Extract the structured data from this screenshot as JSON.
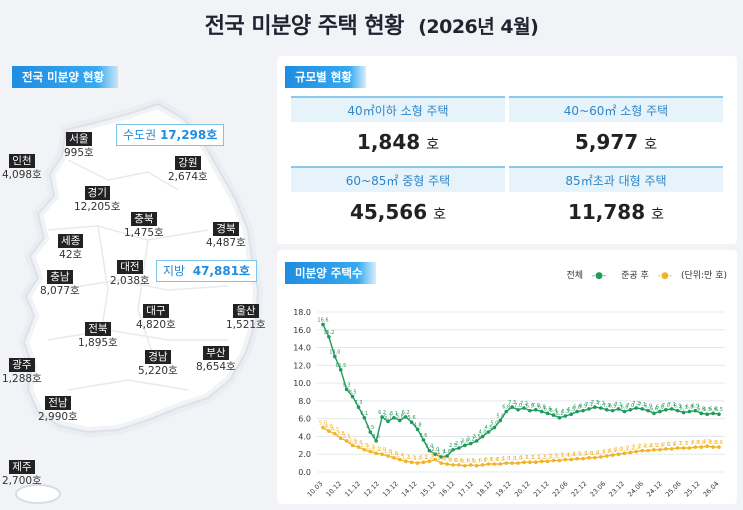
{
  "title": "전국 미분양 주택 현황",
  "title_sub": "(2026년 4월)",
  "map": {
    "badge": "전국 미분양 현황",
    "capital_label": "수도권",
    "capital_value": "17,298호",
    "local_label": "지방",
    "local_value": "47,881호",
    "cities": [
      {
        "name": "서울",
        "value": "995호"
      },
      {
        "name": "인천",
        "value": "4,098호"
      },
      {
        "name": "경기",
        "value": "12,205호"
      },
      {
        "name": "강원",
        "value": "2,674호"
      },
      {
        "name": "충북",
        "value": "1,475호"
      },
      {
        "name": "세종",
        "value": "42호"
      },
      {
        "name": "충남",
        "value": "8,077호"
      },
      {
        "name": "대전",
        "value": "2,038호"
      },
      {
        "name": "경북",
        "value": "4,487호"
      },
      {
        "name": "대구",
        "value": "4,820호"
      },
      {
        "name": "전북",
        "value": "1,895호"
      },
      {
        "name": "울산",
        "value": "1,521호"
      },
      {
        "name": "경남",
        "value": "5,220호"
      },
      {
        "name": "부산",
        "value": "8,654호"
      },
      {
        "name": "광주",
        "value": "1,288호"
      },
      {
        "name": "전남",
        "value": "2,990호"
      },
      {
        "name": "제주",
        "value": "2,700호"
      }
    ]
  },
  "size": {
    "badge": "규모별 현황",
    "unit": "호",
    "cells": [
      {
        "label": "40㎡이하 소형 주택",
        "value": "1,848"
      },
      {
        "label": "40~60㎡ 소형 주택",
        "value": "5,977"
      },
      {
        "label": "60~85㎡ 중형 주택",
        "value": "45,566"
      },
      {
        "label": "85㎡초과 대형 주택",
        "value": "11,788"
      }
    ]
  },
  "chart_badge": "미분양 주택수",
  "colors": {
    "total": "#1e9a5a",
    "completed": "#f0b429",
    "accent": "#1f8de0"
  },
  "chart_data": {
    "type": "line",
    "unit_note": "(단위:만 호)",
    "ylim": [
      0,
      18
    ],
    "yticks": [
      "0.0",
      "2.0",
      "4.0",
      "6.0",
      "8.0",
      "10.0",
      "12.0",
      "14.0",
      "16.0",
      "18.0"
    ],
    "xticks": [
      "10.03",
      "10.12",
      "11.12",
      "12.12",
      "13.12",
      "14.12",
      "15.12",
      "16.12",
      "17.12",
      "18.12",
      "19.12",
      "20.12",
      "21.12",
      "22.06",
      "22.12",
      "23.06",
      "23.12",
      "24.06",
      "24.12",
      "25.06",
      "25.12",
      "26.04"
    ],
    "series": [
      {
        "name": "전체",
        "values": [
          16.6,
          15.2,
          13.0,
          11.5,
          9.3,
          8.5,
          7.3,
          6.1,
          4.5,
          3.5,
          6.2,
          5.7,
          6.1,
          5.8,
          6.2,
          5.6,
          4.8,
          3.6,
          2.4,
          2.0,
          1.7,
          1.8,
          2.5,
          2.7,
          3.0,
          3.2,
          3.5,
          4.0,
          4.5,
          5.0,
          5.8,
          6.8,
          7.3,
          7.0,
          7.2,
          6.9,
          7.0,
          6.8,
          6.6,
          6.4,
          6.1,
          6.3,
          6.5,
          6.8,
          6.9,
          7.1,
          7.3,
          7.2,
          7.0,
          6.9,
          7.1,
          6.8,
          7.0,
          7.2,
          7.1,
          6.9,
          6.6,
          6.8,
          7.0,
          7.1,
          6.9,
          6.7,
          6.8,
          6.9,
          6.6,
          6.5,
          6.6,
          6.5
        ]
      },
      {
        "name": "준공 후",
        "values": [
          5.0,
          4.6,
          4.3,
          3.8,
          3.5,
          3.0,
          2.8,
          2.5,
          2.3,
          2.1,
          2.0,
          1.8,
          1.6,
          1.4,
          1.2,
          1.1,
          1.0,
          1.1,
          1.2,
          1.4,
          1.0,
          0.9,
          0.8,
          0.8,
          0.7,
          0.8,
          0.7,
          0.8,
          0.9,
          0.9,
          0.9,
          1.0,
          1.0,
          1.0,
          1.1,
          1.1,
          1.1,
          1.2,
          1.2,
          1.3,
          1.3,
          1.4,
          1.4,
          1.5,
          1.5,
          1.6,
          1.6,
          1.7,
          1.8,
          1.9,
          2.0,
          2.1,
          2.2,
          2.3,
          2.4,
          2.4,
          2.5,
          2.5,
          2.6,
          2.6,
          2.7,
          2.7,
          2.7,
          2.8,
          2.8,
          2.9,
          2.8,
          2.8
        ]
      }
    ]
  }
}
